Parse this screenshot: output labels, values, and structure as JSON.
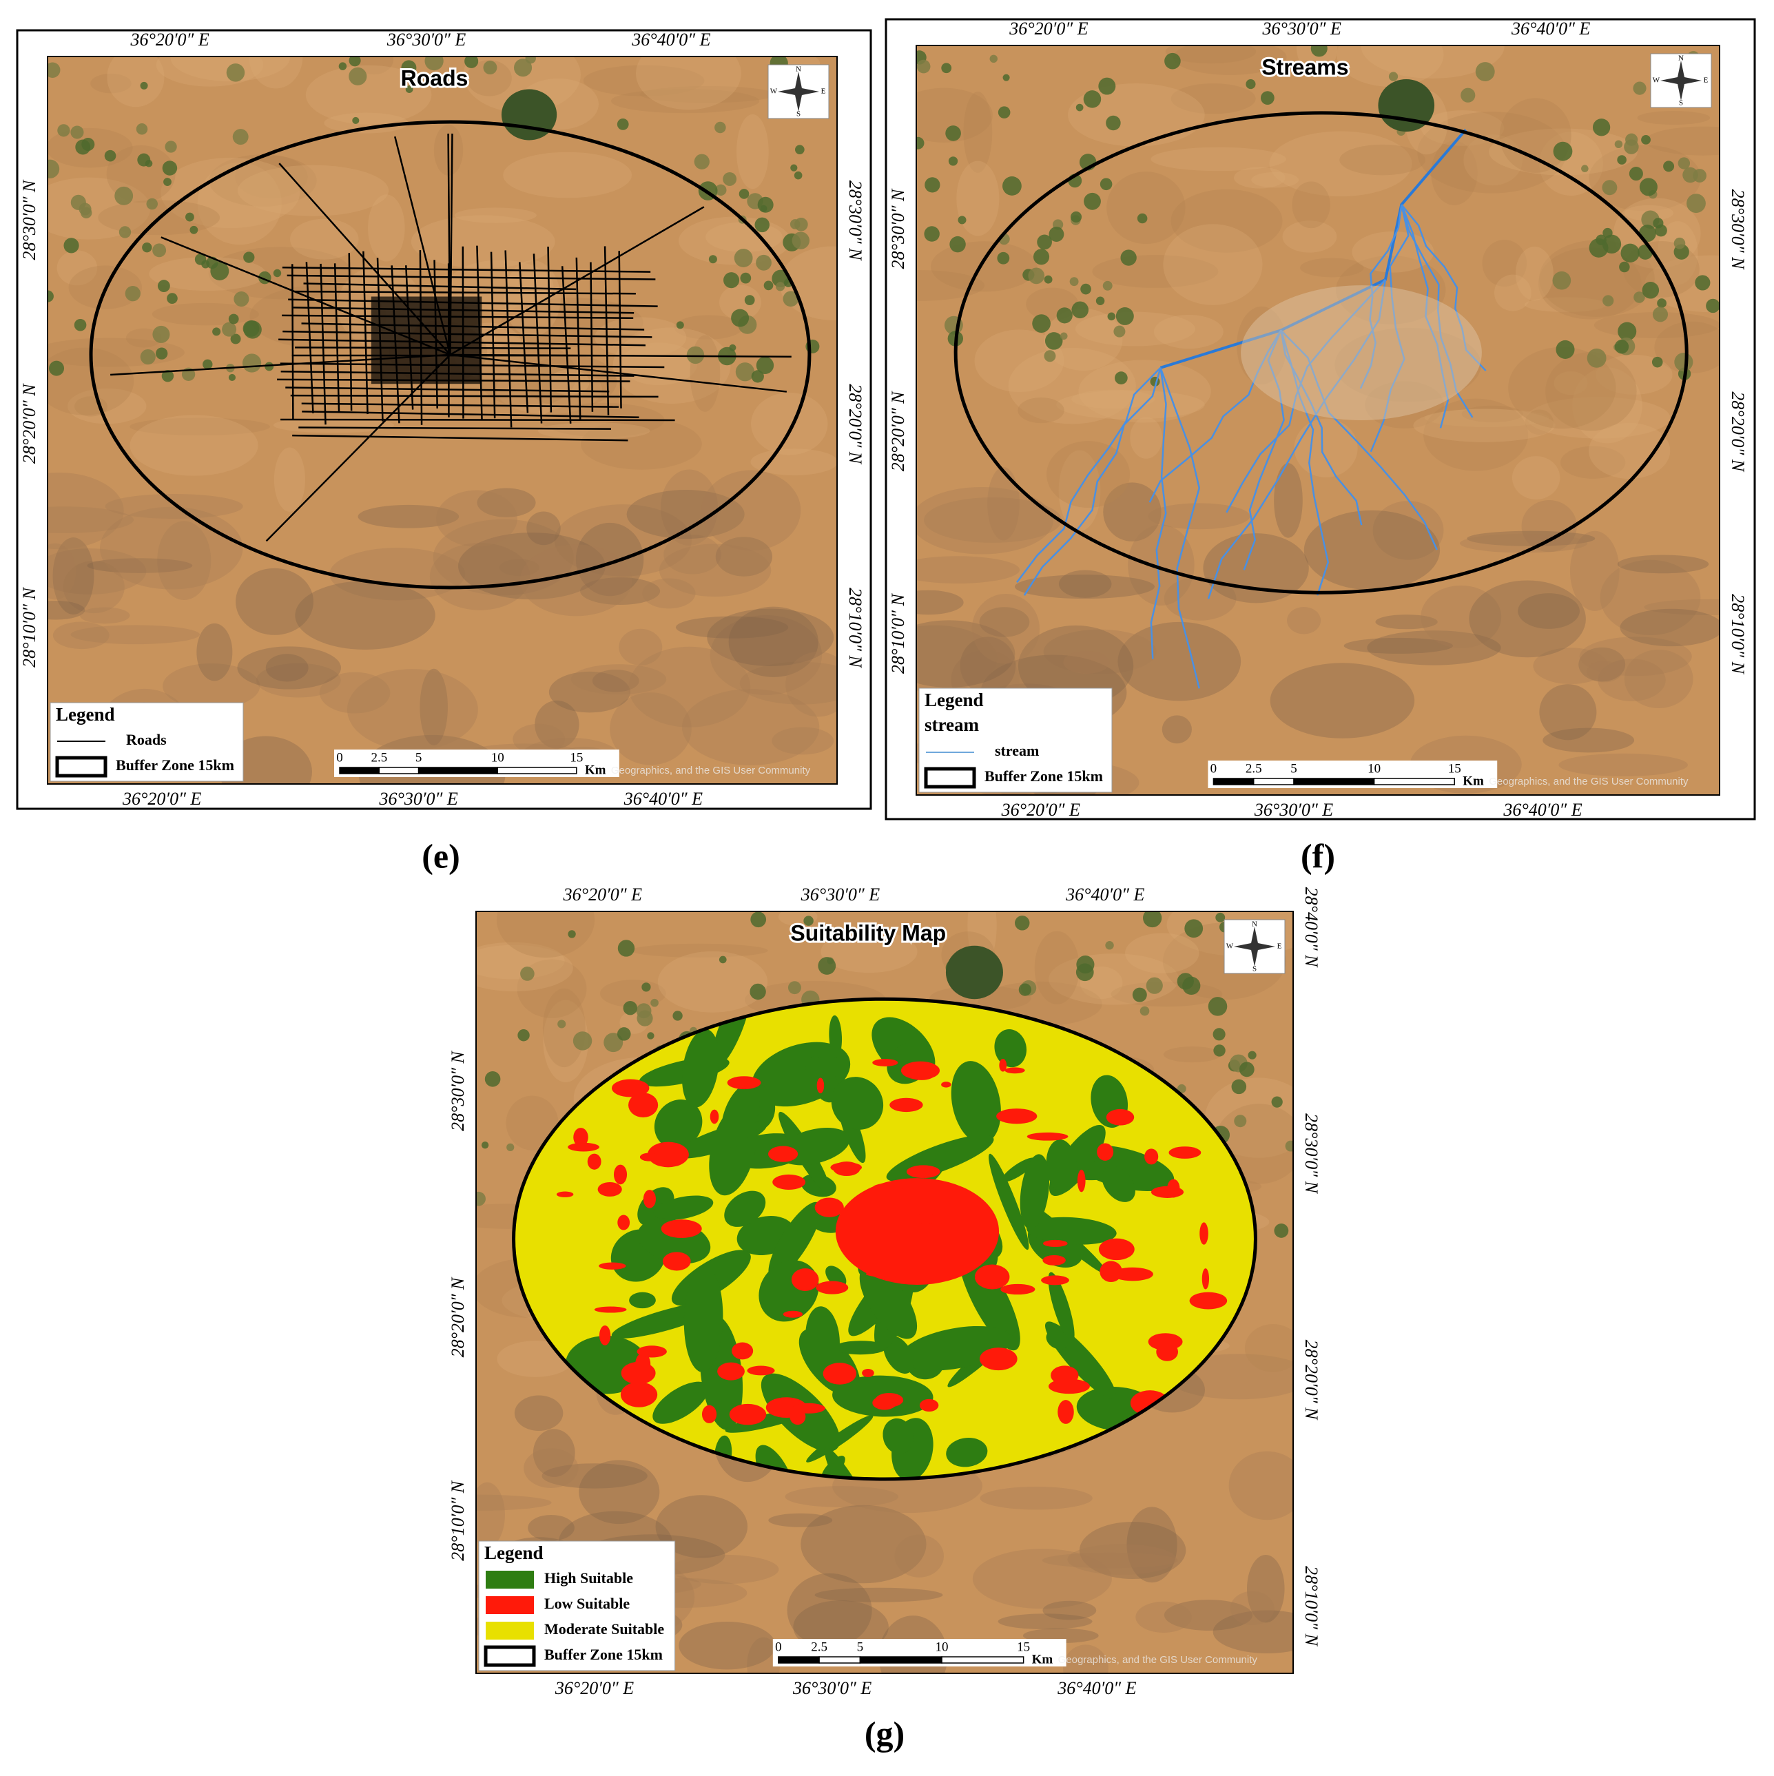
{
  "compass_labels": [
    "N",
    "E",
    "S",
    "W"
  ],
  "panels": [
    {
      "type": "roads",
      "caption": "(e)",
      "title": "Roads",
      "top_lon": [
        "36°20′0″ E",
        "36°30′0″ E",
        "36°40′0″ E"
      ],
      "bottom_lon": [
        "36°20′0″ E",
        "36°30′0″ E",
        "36°40′0″ E"
      ],
      "left_lat": [
        "28°30′0″ N",
        "28°20′0″ N",
        "28°10′0″ N"
      ],
      "right_lat": [
        "28°30′0″ N",
        "28°20′0″ N",
        "28°10′0″ N"
      ],
      "legend": {
        "title": "Legend",
        "items": [
          {
            "label": "Roads",
            "symbol": "line",
            "color": "#000000"
          },
          {
            "label": "Buffer Zone 15km",
            "symbol": "box",
            "color": "#ffffff"
          }
        ]
      },
      "scale_bar": {
        "ticks": [
          0,
          2.5,
          5,
          10,
          15
        ],
        "unit": "Km"
      },
      "attribution": "Geographics, and the GIS User Community"
    },
    {
      "type": "streams",
      "caption": "(f)",
      "title": "Streams",
      "top_lon": [
        "36°20′0″ E",
        "36°30′0″ E",
        "36°40′0″ E"
      ],
      "bottom_lon": [
        "36°20′0″ E",
        "36°30′0″ E",
        "36°40′0″ E"
      ],
      "left_lat": [
        "28°30′0″ N",
        "28°20′0″ N",
        "28°10′0″ N"
      ],
      "right_lat": [
        "28°30′0″ N",
        "28°20′0″ N",
        "28°10′0″ N"
      ],
      "legend": {
        "title": "Legend",
        "subtitle": "stream",
        "items": [
          {
            "label": "stream",
            "symbol": "line",
            "color": "#6fa8dc"
          },
          {
            "label": "Buffer Zone 15km",
            "symbol": "box",
            "color": "#ffffff"
          }
        ]
      },
      "scale_bar": {
        "ticks": [
          0,
          2.5,
          5,
          10,
          15
        ],
        "unit": "Km"
      },
      "attribution": "Geographics, and the GIS User Community"
    },
    {
      "type": "suitability",
      "caption": "(g)",
      "title": "Suitability Map",
      "top_lon": [
        "36°20′0″ E",
        "36°30′0″ E",
        "36°40′0″ E"
      ],
      "bottom_lon": [
        "36°20′0″ E",
        "36°30′0″ E",
        "36°40′0″ E"
      ],
      "left_lat": [
        "28°30′0″ N",
        "28°20′0″ N",
        "28°10′0″ N"
      ],
      "right_lat": [
        "28°40′0″ N",
        "28°30′0″ N",
        "28°20′0″ N",
        "28°10′0″ N"
      ],
      "legend": {
        "title": "Legend",
        "items": [
          {
            "label": "High Suitable",
            "symbol": "patch",
            "color": "#2e7d12"
          },
          {
            "label": "Low Suitable",
            "symbol": "patch",
            "color": "#ff1a0a"
          },
          {
            "label": "Moderate Suitable",
            "symbol": "patch",
            "color": "#e8e000"
          },
          {
            "label": "Buffer Zone 15km",
            "symbol": "box",
            "color": "#ffffff"
          }
        ]
      },
      "scale_bar": {
        "ticks": [
          0,
          2.5,
          5,
          10,
          15
        ],
        "unit": "Km"
      },
      "attribution": "Geographics, and the GIS User Community"
    }
  ]
}
